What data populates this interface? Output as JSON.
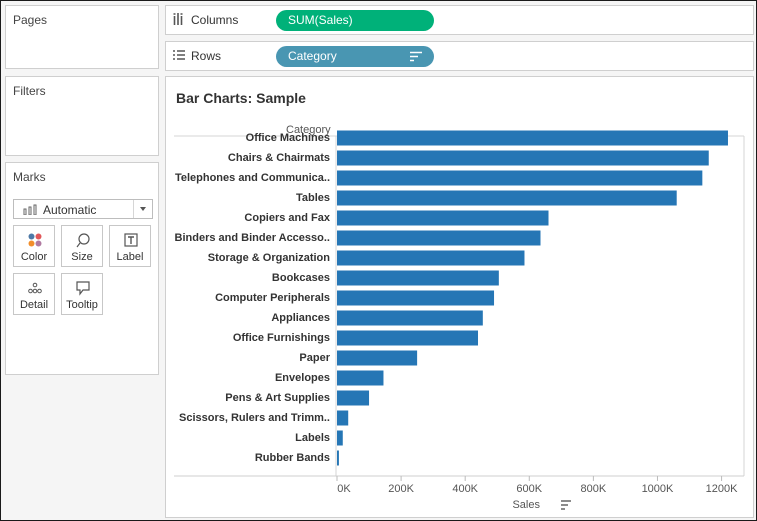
{
  "sidebar": {
    "pages_title": "Pages",
    "filters_title": "Filters",
    "marks_title": "Marks",
    "mark_type": "Automatic",
    "mark_cards": [
      {
        "label": "Color",
        "icon": "color-dots-icon"
      },
      {
        "label": "Size",
        "icon": "size-lasso-icon"
      },
      {
        "label": "Label",
        "icon": "text-label-icon"
      },
      {
        "label": "Detail",
        "icon": "detail-dots-icon"
      },
      {
        "label": "Tooltip",
        "icon": "speech-bubble-icon"
      }
    ]
  },
  "shelves": {
    "columns_label": "Columns",
    "columns_pill": "SUM(Sales)",
    "rows_label": "Rows",
    "rows_pill": "Category"
  },
  "view": {
    "title": "Bar Charts: Sample"
  },
  "colors": {
    "bar": "#2576b5",
    "columns_pill": "#00b179",
    "rows_pill": "#4996b2"
  },
  "chart_data": {
    "type": "bar",
    "orientation": "horizontal",
    "row_header": "Category",
    "xlabel": "Sales",
    "categories": [
      "Office Machines",
      "Chairs & Chairmats",
      "Telephones and Communica..",
      "Tables",
      "Copiers and Fax",
      "Binders and Binder Accesso..",
      "Storage & Organization",
      "Bookcases",
      "Computer Peripherals",
      "Appliances",
      "Office Furnishings",
      "Paper",
      "Envelopes",
      "Pens & Art Supplies",
      "Scissors, Rulers and Trimm..",
      "Labels",
      "Rubber Bands"
    ],
    "values": [
      1220000,
      1160000,
      1140000,
      1060000,
      660000,
      635000,
      585000,
      505000,
      490000,
      455000,
      440000,
      250000,
      145000,
      100000,
      35000,
      18000,
      6000
    ],
    "ticks": [
      0,
      200000,
      400000,
      600000,
      800000,
      1000000,
      1200000
    ],
    "tick_labels": [
      "0K",
      "200K",
      "400K",
      "600K",
      "800K",
      "1000K",
      "1200K"
    ],
    "xlim": [
      0,
      1270000
    ],
    "grid": false
  }
}
